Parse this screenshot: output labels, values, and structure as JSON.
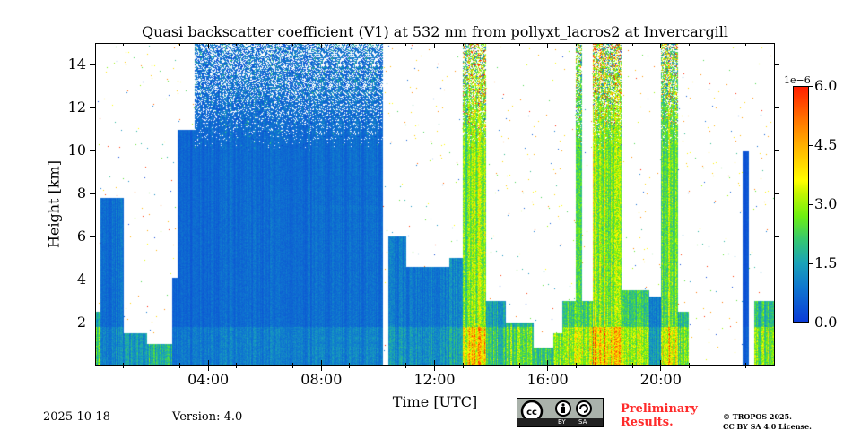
{
  "chart_data": {
    "type": "heatmap",
    "title": "Quasi backscatter coefficient (V1) at 532 nm from pollyxt_lacros2 at Invercargill",
    "xlabel": "Time [UTC]",
    "ylabel": "Height [km]",
    "xlim_hours": [
      0,
      24
    ],
    "ylim_km": [
      0,
      15
    ],
    "x_ticks": [
      {
        "h": 4,
        "label": "04:00"
      },
      {
        "h": 8,
        "label": "08:00"
      },
      {
        "h": 12,
        "label": "12:00"
      },
      {
        "h": 16,
        "label": "16:00"
      },
      {
        "h": 20,
        "label": "20:00"
      }
    ],
    "y_ticks": [
      {
        "v": 2,
        "label": "2"
      },
      {
        "v": 4,
        "label": "4"
      },
      {
        "v": 6,
        "label": "6"
      },
      {
        "v": 8,
        "label": "8"
      },
      {
        "v": 10,
        "label": "10"
      },
      {
        "v": 12,
        "label": "12"
      },
      {
        "v": 14,
        "label": "14"
      }
    ],
    "colorbar": {
      "exponent_label": "1e−6",
      "range": [
        0,
        6.0
      ],
      "ticks": [
        {
          "v": 0,
          "label": "0.0"
        },
        {
          "v": 1.5,
          "label": "1.5"
        },
        {
          "v": 3.0,
          "label": "3.0"
        },
        {
          "v": 4.5,
          "label": "4.5"
        },
        {
          "v": 6.0,
          "label": "6.0"
        }
      ]
    },
    "segments": [
      {
        "t0": 0.0,
        "t1": 0.15,
        "top": 2.5,
        "value": 1.6
      },
      {
        "t0": 0.15,
        "t1": 1.0,
        "top": 7.8,
        "value": 0.8
      },
      {
        "t0": 1.0,
        "t1": 1.8,
        "top": 1.5,
        "value": 1.0
      },
      {
        "t0": 1.8,
        "t1": 2.7,
        "top": 1.0,
        "value": 1.3
      },
      {
        "t0": 2.7,
        "t1": 2.9,
        "top": 4.1,
        "value": 0.6
      },
      {
        "t0": 2.9,
        "t1": 3.5,
        "top": 11.0,
        "value": 0.6
      },
      {
        "t0": 3.5,
        "t1": 10.15,
        "top": 15.0,
        "value": 0.7
      },
      {
        "t0": 10.35,
        "t1": 11.0,
        "top": 6.0,
        "value": 0.9
      },
      {
        "t0": 11.0,
        "t1": 12.5,
        "top": 4.6,
        "value": 0.9
      },
      {
        "t0": 12.5,
        "t1": 13.0,
        "top": 5.0,
        "value": 1.2
      },
      {
        "t0": 13.0,
        "t1": 13.8,
        "top": 15.0,
        "value": 2.8
      },
      {
        "t0": 13.8,
        "t1": 14.5,
        "top": 3.0,
        "value": 1.5
      },
      {
        "t0": 14.5,
        "t1": 15.5,
        "top": 2.0,
        "value": 1.8
      },
      {
        "t0": 15.5,
        "t1": 16.2,
        "top": 0.8,
        "value": 1.5
      },
      {
        "t0": 16.2,
        "t1": 16.5,
        "top": 1.5,
        "value": 2.0
      },
      {
        "t0": 16.5,
        "t1": 17.0,
        "top": 3.0,
        "value": 2.3
      },
      {
        "t0": 17.0,
        "t1": 17.2,
        "top": 15.0,
        "value": 2.5
      },
      {
        "t0": 17.2,
        "t1": 17.6,
        "top": 3.0,
        "value": 2.2
      },
      {
        "t0": 17.6,
        "t1": 18.6,
        "top": 15.0,
        "value": 3.0
      },
      {
        "t0": 18.6,
        "t1": 19.6,
        "top": 3.5,
        "value": 2.0
      },
      {
        "t0": 19.6,
        "t1": 20.0,
        "top": 3.2,
        "value": 1.0
      },
      {
        "t0": 20.0,
        "t1": 20.6,
        "top": 15.0,
        "value": 2.8
      },
      {
        "t0": 20.6,
        "t1": 21.0,
        "top": 2.5,
        "value": 1.8
      },
      {
        "t0": 22.9,
        "t1": 23.1,
        "top": 10.0,
        "value": 0.4
      },
      {
        "t0": 23.3,
        "t1": 24.0,
        "top": 3.0,
        "value": 2.0
      }
    ]
  },
  "footer": {
    "date": "2025-10-18",
    "version": "Version: 4.0",
    "cc_badge": "cc BY SA",
    "cc_by": "BY",
    "cc_sa": "SA",
    "preliminary": [
      "Preliminary",
      "Results."
    ],
    "license": [
      "© TROPOS 2025.",
      "CC BY SA 4.0 License."
    ]
  }
}
